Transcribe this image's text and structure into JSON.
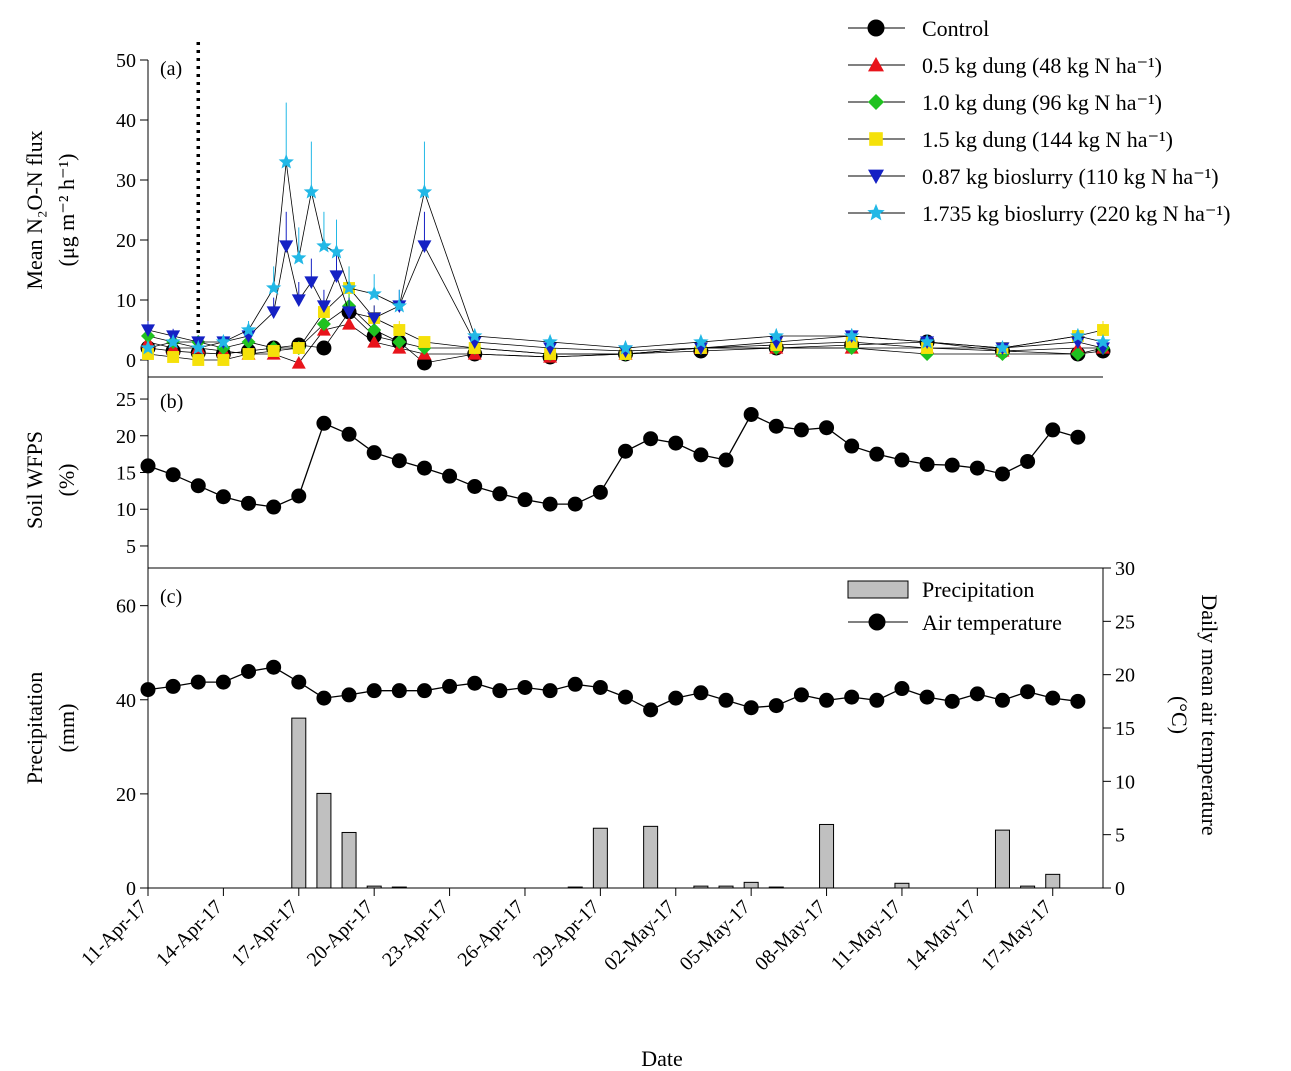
{
  "figure": {
    "x_axis_title": "Date",
    "date_tick_labels": [
      "11-Apr-17",
      "14-Apr-17",
      "17-Apr-17",
      "20-Apr-17",
      "23-Apr-17",
      "26-Apr-17",
      "29-Apr-17",
      "02-May-17",
      "05-May-17",
      "08-May-17",
      "11-May-17",
      "14-May-17",
      "17-May-17"
    ],
    "date_range": [
      "2017-04-11",
      "2017-05-19"
    ]
  },
  "chart_data": [
    {
      "id": "a",
      "type": "line",
      "panel_label": "(a)",
      "ylabel_line1": "Mean N₂O-N flux",
      "ylabel_line2": "(μg m⁻² h⁻¹)",
      "ylim": [
        0,
        50
      ],
      "yticks": [
        0,
        10,
        20,
        30,
        40,
        50
      ],
      "grid": false,
      "error_bars": true,
      "legend_position": "top-right",
      "annotation": "dotted vertical line at 13-Apr-17 (treatment application)",
      "application_date": "2017-04-13",
      "series": [
        {
          "name": "Control",
          "color": "#000000",
          "marker": "circle",
          "x": [
            "2017-04-11",
            "2017-04-12",
            "2017-04-13",
            "2017-04-14",
            "2017-04-15",
            "2017-04-16",
            "2017-04-17",
            "2017-04-18",
            "2017-04-19",
            "2017-04-20",
            "2017-04-21",
            "2017-04-22",
            "2017-04-24",
            "2017-04-27",
            "2017-04-30",
            "2017-05-03",
            "2017-05-06",
            "2017-05-09",
            "2017-05-12",
            "2017-05-15",
            "2017-05-18",
            "2017-05-19"
          ],
          "y": [
            2,
            1.5,
            1.2,
            1,
            1.5,
            2,
            2.5,
            2,
            8,
            4,
            3,
            -0.5,
            1,
            0.5,
            1,
            1.5,
            2,
            2.5,
            3,
            1.5,
            1,
            1.5
          ]
        },
        {
          "name": "0.5 kg dung (48 kg N ha⁻¹)",
          "color": "#e8141b",
          "marker": "triangle-up",
          "x": [
            "2017-04-11",
            "2017-04-12",
            "2017-04-13",
            "2017-04-14",
            "2017-04-15",
            "2017-04-16",
            "2017-04-17",
            "2017-04-18",
            "2017-04-19",
            "2017-04-20",
            "2017-04-21",
            "2017-04-22",
            "2017-04-24",
            "2017-04-27",
            "2017-04-30",
            "2017-05-03",
            "2017-05-06",
            "2017-05-09",
            "2017-05-12",
            "2017-05-15",
            "2017-05-18",
            "2017-05-19"
          ],
          "y": [
            3,
            2,
            2,
            1.5,
            1,
            1,
            -0.5,
            5,
            6,
            3,
            2,
            1,
            1,
            0.5,
            1,
            2,
            2,
            2,
            2,
            1.5,
            2,
            2
          ]
        },
        {
          "name": "1.0 kg dung (96 kg N ha⁻¹)",
          "color": "#1fc21f",
          "marker": "diamond",
          "x": [
            "2017-04-11",
            "2017-04-12",
            "2017-04-13",
            "2017-04-14",
            "2017-04-15",
            "2017-04-16",
            "2017-04-17",
            "2017-04-18",
            "2017-04-19",
            "2017-04-20",
            "2017-04-21",
            "2017-04-22",
            "2017-04-24",
            "2017-04-27",
            "2017-04-30",
            "2017-05-03",
            "2017-05-06",
            "2017-05-09",
            "2017-05-12",
            "2017-05-15",
            "2017-05-18",
            "2017-05-19"
          ],
          "y": [
            4,
            3,
            3,
            2,
            3,
            2,
            2,
            6,
            9,
            5,
            3,
            2,
            2,
            1,
            1,
            2,
            2,
            2,
            1,
            1,
            1,
            2
          ]
        },
        {
          "name": "1.5 kg dung (144 kg N ha⁻¹)",
          "color": "#f5e10a",
          "marker": "square",
          "x": [
            "2017-04-11",
            "2017-04-12",
            "2017-04-13",
            "2017-04-14",
            "2017-04-15",
            "2017-04-16",
            "2017-04-17",
            "2017-04-18",
            "2017-04-19",
            "2017-04-20",
            "2017-04-21",
            "2017-04-22",
            "2017-04-24",
            "2017-04-27",
            "2017-04-30",
            "2017-05-03",
            "2017-05-06",
            "2017-05-09",
            "2017-05-12",
            "2017-05-15",
            "2017-05-18",
            "2017-05-19"
          ],
          "y": [
            1,
            0.5,
            0,
            0,
            1,
            1.5,
            2,
            8,
            12,
            7,
            5,
            3,
            2,
            1,
            1,
            2,
            2.5,
            3,
            2,
            2,
            4,
            5
          ]
        },
        {
          "name": "0.87 kg bioslurry (110 kg N ha⁻¹)",
          "color": "#1521c4",
          "marker": "triangle-down",
          "x": [
            "2017-04-11",
            "2017-04-12",
            "2017-04-13",
            "2017-04-14",
            "2017-04-15",
            "2017-04-16",
            "2017-04-16.5",
            "2017-04-17",
            "2017-04-17.5",
            "2017-04-18",
            "2017-04-18.5",
            "2017-04-19",
            "2017-04-20",
            "2017-04-21",
            "2017-04-22",
            "2017-04-24",
            "2017-04-27",
            "2017-04-30",
            "2017-05-03",
            "2017-05-06",
            "2017-05-09",
            "2017-05-12",
            "2017-05-15",
            "2017-05-18",
            "2017-05-19"
          ],
          "y": [
            5,
            4,
            3,
            3,
            4,
            8,
            19,
            10,
            13,
            9,
            14,
            8,
            7,
            9,
            19,
            3,
            2,
            1.5,
            2,
            3,
            4,
            3,
            2,
            3,
            2
          ]
        },
        {
          "name": "1.735 kg bioslurry (220 kg N ha⁻¹)",
          "color": "#22b8e6",
          "marker": "star",
          "x": [
            "2017-04-11",
            "2017-04-12",
            "2017-04-13",
            "2017-04-14",
            "2017-04-15",
            "2017-04-16",
            "2017-04-16.5",
            "2017-04-17",
            "2017-04-17.5",
            "2017-04-18",
            "2017-04-18.5",
            "2017-04-19",
            "2017-04-20",
            "2017-04-21",
            "2017-04-22",
            "2017-04-24",
            "2017-04-27",
            "2017-04-30",
            "2017-05-03",
            "2017-05-06",
            "2017-05-09",
            "2017-05-12",
            "2017-05-15",
            "2017-05-18",
            "2017-05-19"
          ],
          "y": [
            2,
            3,
            2,
            3,
            5,
            12,
            33,
            17,
            28,
            19,
            18,
            12,
            11,
            9,
            28,
            4,
            3,
            2,
            3,
            4,
            4,
            3,
            2,
            4,
            3
          ]
        }
      ]
    },
    {
      "id": "b",
      "type": "line",
      "panel_label": "(b)",
      "ylabel_line1": "Soil WFPS",
      "ylabel_line2": "(%)",
      "ylim": [
        2,
        28
      ],
      "yticks": [
        5,
        10,
        15,
        20,
        25
      ],
      "grid": false,
      "series": [
        {
          "name": "Soil WFPS",
          "color": "#000000",
          "marker": "circle",
          "x": [
            "2017-04-11",
            "2017-04-12",
            "2017-04-13",
            "2017-04-14",
            "2017-04-15",
            "2017-04-16",
            "2017-04-17",
            "2017-04-18",
            "2017-04-19",
            "2017-04-20",
            "2017-04-21",
            "2017-04-22",
            "2017-04-23",
            "2017-04-24",
            "2017-04-25",
            "2017-04-26",
            "2017-04-27",
            "2017-04-28",
            "2017-04-29",
            "2017-04-30",
            "2017-05-01",
            "2017-05-02",
            "2017-05-03",
            "2017-05-04",
            "2017-05-05",
            "2017-05-06",
            "2017-05-07",
            "2017-05-08",
            "2017-05-09",
            "2017-05-10",
            "2017-05-11",
            "2017-05-12",
            "2017-05-13",
            "2017-05-14",
            "2017-05-15",
            "2017-05-16",
            "2017-05-17",
            "2017-05-18"
          ],
          "y": [
            15.9,
            14.7,
            13.2,
            11.7,
            10.8,
            10.3,
            11.8,
            21.7,
            20.2,
            17.7,
            16.6,
            15.6,
            14.5,
            13.1,
            12.1,
            11.3,
            10.7,
            10.7,
            12.3,
            17.9,
            19.6,
            19.0,
            17.4,
            16.7,
            22.9,
            21.3,
            20.8,
            21.1,
            18.6,
            17.5,
            16.7,
            16.1,
            16.0,
            15.6,
            14.8,
            16.5,
            20.8,
            19.8
          ]
        }
      ]
    },
    {
      "id": "c",
      "type": "bar",
      "panel_label": "(c)",
      "ylabel_line1": "Precipitation",
      "ylabel_line2": "(mm)",
      "ylim": [
        0,
        68
      ],
      "yticks": [
        0,
        20,
        40,
        60
      ],
      "y2label_line1": "Daily mean air temperature",
      "y2label_line2": "(°C)",
      "y2lim": [
        0,
        30
      ],
      "y2ticks": [
        0,
        5,
        10,
        15,
        20,
        25,
        30
      ],
      "grid": false,
      "legend_position": "top-right",
      "series": [
        {
          "name": "Precipitation",
          "type": "bar",
          "axis": "left",
          "color": "#c0c0c0",
          "x": [
            "2017-04-17",
            "2017-04-18",
            "2017-04-19",
            "2017-04-20",
            "2017-04-21",
            "2017-04-28",
            "2017-04-29",
            "2017-05-01",
            "2017-05-03",
            "2017-05-04",
            "2017-05-05",
            "2017-05-06",
            "2017-05-08",
            "2017-05-11",
            "2017-05-15",
            "2017-05-16",
            "2017-05-17"
          ],
          "y": [
            36.1,
            20.1,
            11.8,
            0.4,
            0.2,
            0.2,
            12.7,
            13.1,
            0.4,
            0.4,
            1.2,
            0.2,
            13.5,
            1.0,
            12.3,
            0.4,
            2.9
          ]
        },
        {
          "name": "Air temperature",
          "type": "line",
          "axis": "right",
          "color": "#000000",
          "marker": "circle",
          "x": [
            "2017-04-11",
            "2017-04-12",
            "2017-04-13",
            "2017-04-14",
            "2017-04-15",
            "2017-04-16",
            "2017-04-17",
            "2017-04-18",
            "2017-04-19",
            "2017-04-20",
            "2017-04-21",
            "2017-04-22",
            "2017-04-23",
            "2017-04-24",
            "2017-04-25",
            "2017-04-26",
            "2017-04-27",
            "2017-04-28",
            "2017-04-29",
            "2017-04-30",
            "2017-05-01",
            "2017-05-02",
            "2017-05-03",
            "2017-05-04",
            "2017-05-05",
            "2017-05-06",
            "2017-05-07",
            "2017-05-08",
            "2017-05-09",
            "2017-05-10",
            "2017-05-11",
            "2017-05-12",
            "2017-05-13",
            "2017-05-14",
            "2017-05-15",
            "2017-05-16",
            "2017-05-17",
            "2017-05-18"
          ],
          "y": [
            18.6,
            18.9,
            19.3,
            19.3,
            20.3,
            20.7,
            19.3,
            17.8,
            18.1,
            18.5,
            18.5,
            18.5,
            18.9,
            19.2,
            18.5,
            18.8,
            18.5,
            19.1,
            18.8,
            17.9,
            16.7,
            17.8,
            18.3,
            17.6,
            16.9,
            17.1,
            18.1,
            17.6,
            17.9,
            17.6,
            18.7,
            17.9,
            17.5,
            18.2,
            17.6,
            18.4,
            17.8,
            17.5
          ]
        }
      ]
    }
  ]
}
